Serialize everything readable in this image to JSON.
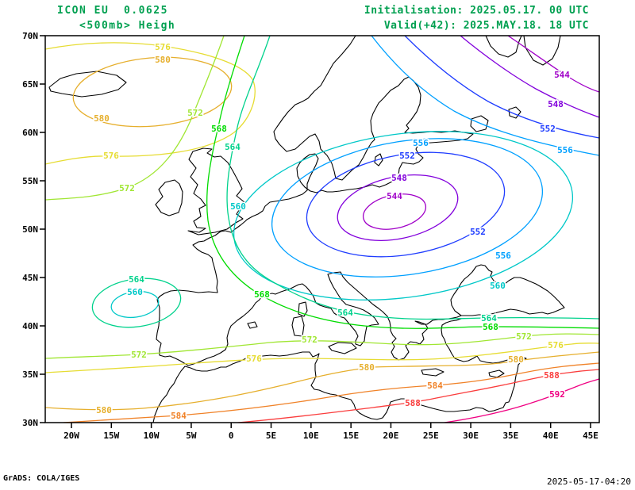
{
  "header": {
    "title_line1": "ICON EU  0.0625",
    "title_line2": "<500mb> Heigh",
    "init_label": "Initialisation: 2025.05.17. 00 UTC",
    "valid_label": "Valid(+42): 2025.MAY.18. 18 UTC",
    "text_color": "#00a050"
  },
  "footer": {
    "left": "GrADS: COLA/IGES",
    "right": "2025-05-17-04:20"
  },
  "map": {
    "background": "#ffffff",
    "frame_color": "#000000",
    "coast_color": "#000000",
    "lat_ticks": [
      "70N",
      "65N",
      "60N",
      "55N",
      "50N",
      "45N",
      "40N",
      "35N",
      "30N"
    ],
    "lon_ticks": [
      "20W",
      "15W",
      "10W",
      "5W",
      "0",
      "5E",
      "10E",
      "15E",
      "20E",
      "25E",
      "30E",
      "35E",
      "40E",
      "45E"
    ],
    "contour_interval": 4,
    "levels": {
      "544": "#A000C8",
      "548": "#8200DC",
      "552": "#1E3CFF",
      "556": "#00A0FF",
      "560": "#00C8C8",
      "564": "#00D28C",
      "568": "#00DC00",
      "572": "#A0E632",
      "576": "#E6DC32",
      "580": "#E6AF2D",
      "584": "#F08228",
      "588": "#FA3C3C",
      "592": "#F00082"
    },
    "labels": [
      [
        544,
        497,
        247
      ],
      [
        548,
        503,
        224
      ],
      [
        552,
        513,
        196
      ],
      [
        556,
        530,
        180
      ],
      [
        552,
        602,
        292
      ],
      [
        556,
        634,
        322
      ],
      [
        560,
        627,
        360
      ],
      [
        560,
        300,
        260
      ],
      [
        544,
        708,
        94
      ],
      [
        548,
        700,
        131
      ],
      [
        552,
        690,
        162
      ],
      [
        556,
        712,
        189
      ],
      [
        576,
        205,
        59
      ],
      [
        580,
        205,
        75
      ],
      [
        580,
        128,
        149
      ],
      [
        576,
        140,
        196
      ],
      [
        572,
        160,
        237
      ],
      [
        572,
        246,
        142
      ],
      [
        568,
        276,
        162
      ],
      [
        564,
        293,
        185
      ],
      [
        564,
        435,
        394
      ],
      [
        564,
        616,
        401
      ],
      [
        568,
        330,
        371
      ],
      [
        568,
        618,
        412
      ],
      [
        572,
        175,
        447
      ],
      [
        572,
        390,
        428
      ],
      [
        572,
        660,
        424
      ],
      [
        576,
        320,
        452
      ],
      [
        576,
        700,
        435
      ],
      [
        580,
        131,
        517
      ],
      [
        580,
        462,
        463
      ],
      [
        580,
        650,
        453
      ],
      [
        584,
        225,
        524
      ],
      [
        584,
        548,
        486
      ],
      [
        588,
        520,
        508
      ],
      [
        588,
        695,
        473
      ],
      [
        592,
        702,
        497
      ],
      [
        564,
        172,
        352
      ],
      [
        560,
        170,
        368
      ]
    ]
  },
  "chart_data": {
    "type": "contour-map",
    "title": "ICON EU 0.0625 <500mb> Heigh",
    "init": "2025.05.17. 00 UTC",
    "valid": "2025.MAY.18. 18 UTC",
    "levels": [
      544,
      548,
      552,
      556,
      560,
      564,
      568,
      572,
      576,
      580,
      584,
      588,
      592
    ],
    "contour_interval": 4,
    "lat_range": [
      "30N",
      "70N"
    ],
    "lon_range": [
      "20W",
      "45E"
    ]
  }
}
